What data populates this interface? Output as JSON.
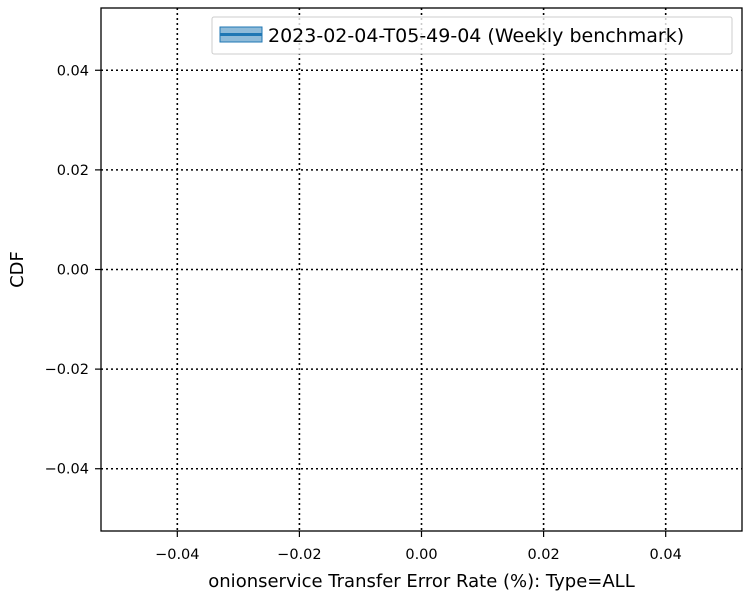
{
  "chart_data": {
    "type": "line",
    "title": "",
    "xlabel": "onionservice Transfer Error Rate (%): Type=ALL",
    "ylabel": "CDF",
    "xlim": [
      -0.0525,
      0.0525
    ],
    "ylim": [
      -0.0525,
      0.0525
    ],
    "xticks": [
      -0.04,
      -0.02,
      0.0,
      0.02,
      0.04
    ],
    "xtick_labels": [
      "−0.04",
      "−0.02",
      "0.00",
      "0.02",
      "0.04"
    ],
    "yticks": [
      0.04,
      0.02,
      0.0,
      -0.02,
      -0.04
    ],
    "ytick_labels": [
      "0.04",
      "0.02",
      "0.00",
      "−0.02",
      "−0.04"
    ],
    "grid": true,
    "grid_style": "dotted",
    "legend_position": "top-right",
    "series": [
      {
        "name": "2023-02-04-T05-49-04 (Weekly benchmark)",
        "color": "#1f77b4",
        "x": [],
        "y": []
      }
    ]
  }
}
